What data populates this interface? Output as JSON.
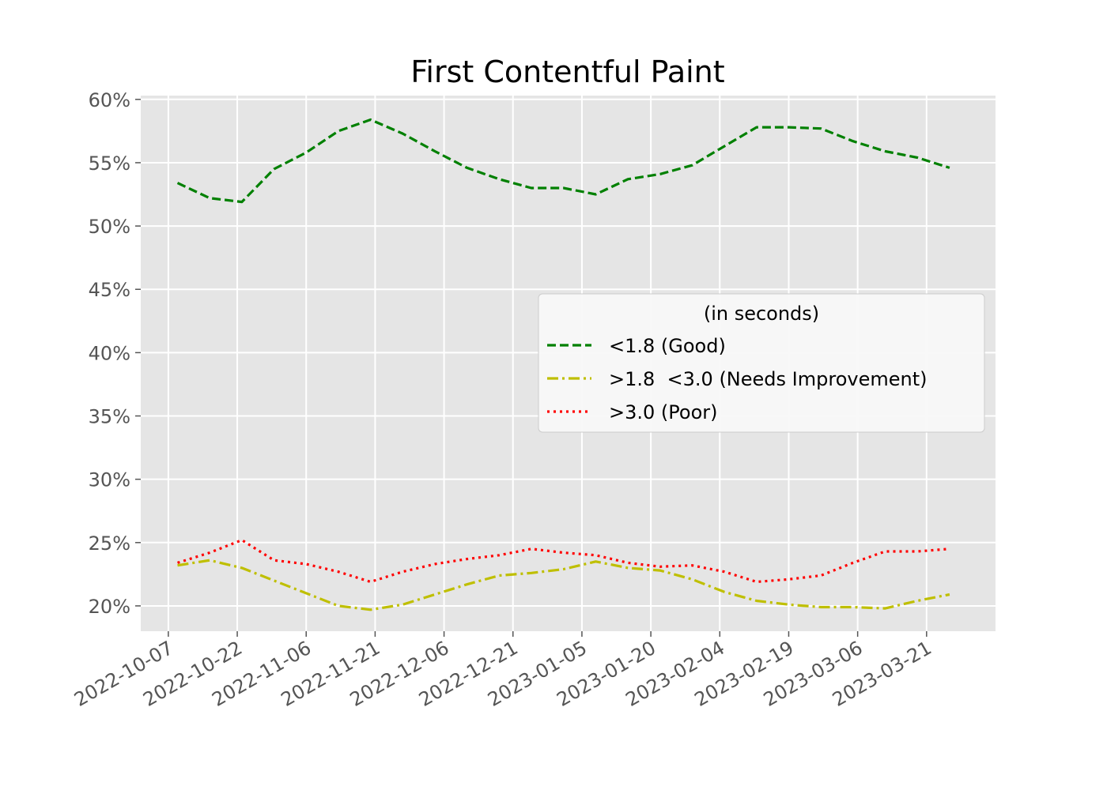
{
  "chart_data": {
    "type": "line",
    "title": "First Contentful Paint",
    "xlabel": "",
    "ylabel": "",
    "x_tick_labels": [
      "2022-10-07",
      "2022-10-22",
      "2022-11-06",
      "2022-11-21",
      "2022-12-06",
      "2022-12-21",
      "2023-01-05",
      "2023-01-20",
      "2023-02-04",
      "2023-02-19",
      "2023-03-06",
      "2023-03-21"
    ],
    "y_tick_labels": [
      "20%",
      "25%",
      "30%",
      "35%",
      "40%",
      "45%",
      "50%",
      "55%",
      "60%"
    ],
    "xlim": [
      "2022-10-01",
      "2023-04-05"
    ],
    "ylim": [
      18,
      60.3
    ],
    "y_unit": "%",
    "grid": true,
    "legend": {
      "title": "(in seconds)",
      "placement": "center-right"
    },
    "x": [
      "2022-10-09",
      "2022-10-16",
      "2022-10-23",
      "2022-10-30",
      "2022-11-06",
      "2022-11-13",
      "2022-11-20",
      "2022-11-27",
      "2022-12-04",
      "2022-12-11",
      "2022-12-18",
      "2022-12-25",
      "2023-01-01",
      "2023-01-08",
      "2023-01-15",
      "2023-01-22",
      "2023-01-29",
      "2023-02-05",
      "2023-02-12",
      "2023-02-19",
      "2023-02-26",
      "2023-03-05",
      "2023-03-12",
      "2023-03-19",
      "2023-03-26"
    ],
    "series": [
      {
        "name": "<1.8 (Good)",
        "color": "#008000",
        "dash": "dashed",
        "values": [
          53.4,
          52.2,
          51.9,
          54.5,
          55.8,
          57.5,
          58.4,
          57.3,
          55.9,
          54.6,
          53.7,
          53.0,
          53.0,
          52.5,
          53.7,
          54.1,
          54.8,
          56.3,
          57.8,
          57.8,
          57.7,
          56.7,
          55.9,
          55.4,
          54.6
        ]
      },
      {
        "name": ">1.8  <3.0 (Needs Improvement)",
        "color": "#bfbf00",
        "dash": "dashdot",
        "values": [
          23.2,
          23.6,
          23.0,
          22.0,
          21.0,
          20.0,
          19.7,
          20.1,
          20.9,
          21.7,
          22.4,
          22.6,
          22.9,
          23.5,
          23.0,
          22.8,
          22.1,
          21.1,
          20.4,
          20.1,
          19.9,
          19.9,
          19.8,
          20.4,
          20.9
        ]
      },
      {
        "name": ">3.0 (Poor)",
        "color": "#ff0000",
        "dash": "dotted",
        "values": [
          23.4,
          24.2,
          25.2,
          23.6,
          23.3,
          22.7,
          21.9,
          22.7,
          23.3,
          23.7,
          24.0,
          24.5,
          24.2,
          24.0,
          23.4,
          23.1,
          23.2,
          22.7,
          21.9,
          22.1,
          22.4,
          23.4,
          24.3,
          24.3,
          24.5
        ]
      }
    ]
  }
}
